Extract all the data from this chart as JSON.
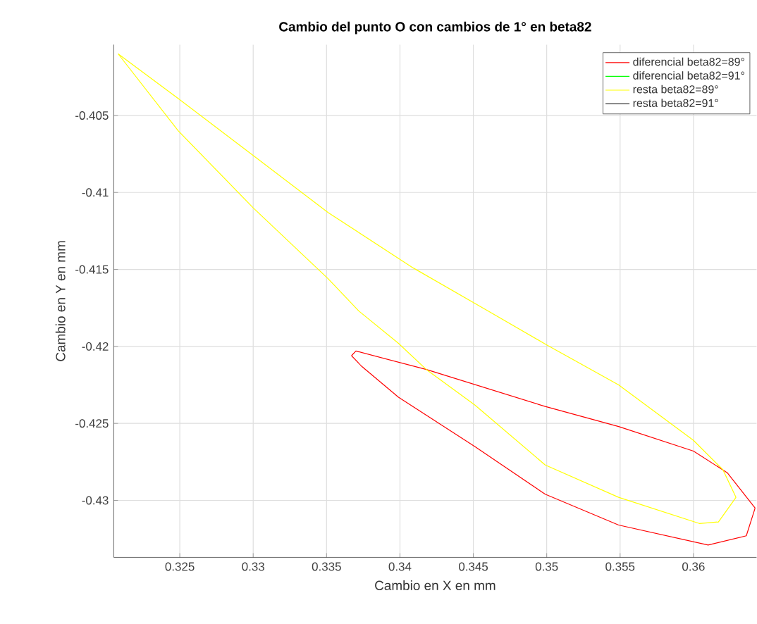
{
  "chart_data": {
    "type": "line",
    "title": "Cambio del punto O con cambios de 1° en beta82",
    "xlabel": "Cambio en X en mm",
    "ylabel": "Cambio en Y en mm",
    "xlim": [
      0.3205,
      0.3643
    ],
    "ylim": [
      -0.4337,
      -0.4004
    ],
    "xticks": [
      0.325,
      0.33,
      0.335,
      0.34,
      0.345,
      0.35,
      0.355,
      0.36
    ],
    "yticks": [
      -0.43,
      -0.425,
      -0.42,
      -0.415,
      -0.41,
      -0.405
    ],
    "grid": true,
    "legend": "top right",
    "marker": "none",
    "line_style": "solid",
    "series": [
      {
        "name": "diferencial beta82=89°",
        "color": "#ff0000",
        "x": [
          0.3367,
          0.337,
          0.3418,
          0.3499,
          0.3549,
          0.36,
          0.3623,
          0.3642
        ],
        "values": [
          -0.4206,
          -0.4203,
          -0.4215,
          -0.4239,
          -0.4252,
          -0.4268,
          -0.4282,
          -0.4305
        ]
      },
      {
        "name": "diferencial beta82=91°",
        "color": "#00ff00"
      },
      {
        "name": "resta beta82=89°",
        "color": "#ffff00",
        "x": [
          0.3208,
          0.3249,
          0.33,
          0.3351,
          0.3409,
          0.346,
          0.35,
          0.3549,
          0.36,
          0.362,
          0.3629
        ],
        "values": [
          -0.401,
          -0.4039,
          -0.4076,
          -0.4113,
          -0.4149,
          -0.4177,
          -0.4199,
          -0.4225,
          -0.4261,
          -0.428,
          -0.4298
        ]
      },
      {
        "name": "resta beta82=91°",
        "color": "#000000"
      },
      {
        "color": "#ff0000",
        "x": [
          0.3367,
          0.3374,
          0.3399,
          0.3451,
          0.3499,
          0.3549,
          0.361,
          0.3636,
          0.3642
        ],
        "values": [
          -0.4206,
          -0.4213,
          -0.4233,
          -0.4265,
          -0.4296,
          -0.4316,
          -0.4329,
          -0.4323,
          -0.4305
        ]
      },
      {
        "color": "#ffff00",
        "x": [
          0.3208,
          0.3249,
          0.33,
          0.3351,
          0.3372,
          0.3399,
          0.3418,
          0.3451,
          0.3499,
          0.3549,
          0.3604,
          0.3617,
          0.3629
        ],
        "values": [
          -0.401,
          -0.406,
          -0.411,
          -0.4156,
          -0.4177,
          -0.4198,
          -0.4215,
          -0.4238,
          -0.4277,
          -0.4298,
          -0.4315,
          -0.4314,
          -0.4298
        ]
      }
    ]
  }
}
